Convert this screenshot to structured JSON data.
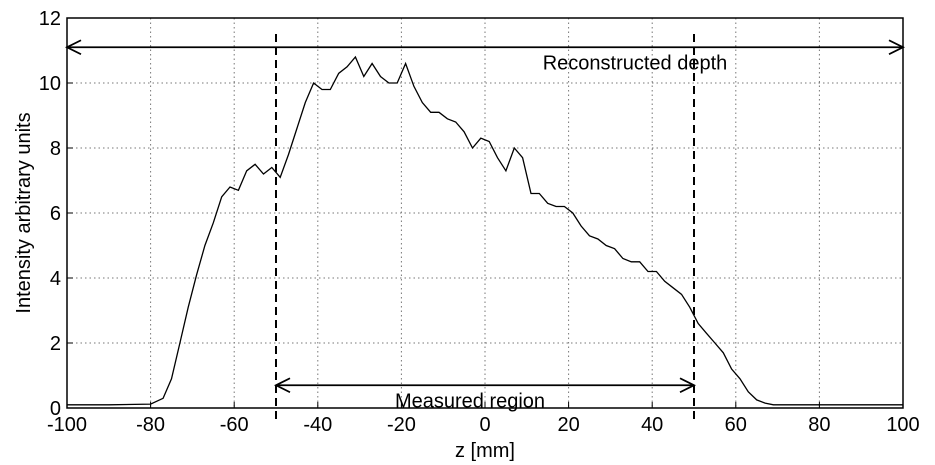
{
  "chart_data": {
    "type": "line",
    "title": "",
    "xlabel": "z [mm]",
    "ylabel": "Intensity arbitrary units",
    "xlim": [
      -100,
      100
    ],
    "ylim": [
      0,
      12
    ],
    "x_ticks": [
      -100,
      -80,
      -60,
      -40,
      -20,
      0,
      20,
      40,
      60,
      80,
      100
    ],
    "y_ticks": [
      0,
      2,
      4,
      6,
      8,
      10,
      12
    ],
    "grid": true,
    "legend": "none",
    "series": [
      {
        "x": [
          -100,
          -90,
          -80,
          -77,
          -75,
          -73,
          -71,
          -69,
          -67,
          -65,
          -63,
          -61,
          -59,
          -57,
          -55,
          -53,
          -51,
          -49,
          -47,
          -45,
          -43,
          -41,
          -39,
          -37,
          -35,
          -33,
          -31,
          -29,
          -27,
          -25,
          -23,
          -21,
          -19,
          -17,
          -15,
          -13,
          -11,
          -9,
          -7,
          -5,
          -3,
          -1,
          1,
          3,
          5,
          7,
          9,
          11,
          13,
          15,
          17,
          19,
          21,
          23,
          25,
          27,
          29,
          31,
          33,
          35,
          37,
          39,
          41,
          43,
          45,
          47,
          49,
          51,
          53,
          55,
          57,
          59,
          61,
          63,
          65,
          67,
          69,
          72,
          80,
          90,
          100
        ],
        "y": [
          0.1,
          0.1,
          0.12,
          0.3,
          0.9,
          2.0,
          3.1,
          4.1,
          5.0,
          5.7,
          6.5,
          6.8,
          6.7,
          7.3,
          7.5,
          7.2,
          7.4,
          7.1,
          7.8,
          8.6,
          9.4,
          10.0,
          9.8,
          9.8,
          10.3,
          10.5,
          10.8,
          10.2,
          10.6,
          10.2,
          10.0,
          10.0,
          10.6,
          9.9,
          9.4,
          9.1,
          9.1,
          8.9,
          8.8,
          8.5,
          8.0,
          8.3,
          8.2,
          7.7,
          7.3,
          8.0,
          7.7,
          6.6,
          6.6,
          6.3,
          6.2,
          6.2,
          6.0,
          5.6,
          5.3,
          5.2,
          5.0,
          4.9,
          4.6,
          4.5,
          4.5,
          4.2,
          4.2,
          3.9,
          3.7,
          3.5,
          3.1,
          2.6,
          2.3,
          2.0,
          1.7,
          1.2,
          0.9,
          0.5,
          0.25,
          0.15,
          0.1,
          0.1,
          0.1,
          0.1,
          0.1
        ]
      }
    ],
    "annotations": [
      {
        "text": "Reconstructed depth",
        "x_from": -100,
        "x_to": 100,
        "y": 11.1
      },
      {
        "text": "Measured region",
        "x_from": -50,
        "x_to": 50,
        "y": 0.7
      }
    ],
    "vlines": [
      -50,
      50
    ]
  }
}
